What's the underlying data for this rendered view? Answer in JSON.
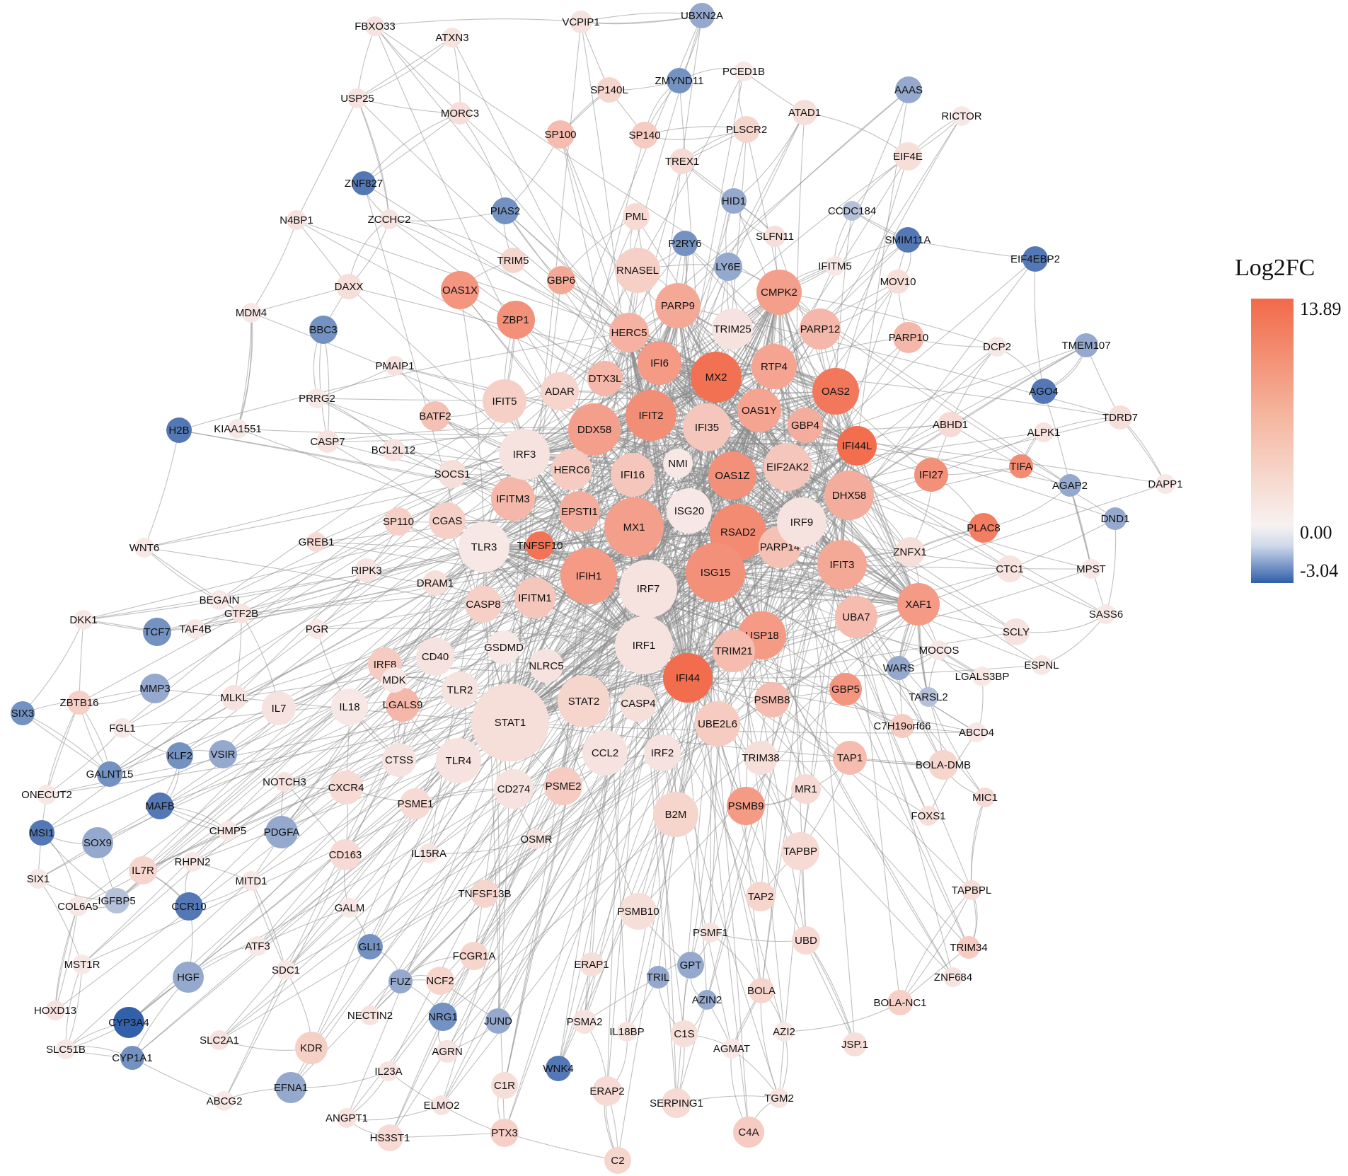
{
  "legend": {
    "title": "Log2FC",
    "max_label": "13.89",
    "mid_label": "0.00",
    "min_label": "-3.04",
    "colors": {
      "high": "#f26a4a",
      "mid": "#f7f2f1",
      "low": "#2f5ea8"
    }
  },
  "nodes": [
    {
      "id": "MX2",
      "v": 13.2
    },
    {
      "id": "IFI44",
      "v": 13.6
    },
    {
      "id": "TNFSF10",
      "v": 13.0
    },
    {
      "id": "IFI44L",
      "v": 13.5
    },
    {
      "id": "OAS2",
      "v": 12.5
    },
    {
      "id": "RSAD2",
      "v": 10.5
    },
    {
      "id": "IFIT2",
      "v": 10.2
    },
    {
      "id": "OAS1Z",
      "v": 10.0
    },
    {
      "id": "ISG15",
      "v": 10.0
    },
    {
      "id": "IFIH1",
      "v": 9.0
    },
    {
      "id": "MX1",
      "v": 8.5
    },
    {
      "id": "DDX58",
      "v": 8.5
    },
    {
      "id": "ZBP1",
      "v": 10.0
    },
    {
      "id": "OAS1X",
      "v": 9.5
    },
    {
      "id": "USP18",
      "v": 9.0
    },
    {
      "id": "IFI27",
      "v": 10.0
    },
    {
      "id": "PLAC8",
      "v": 12.0
    },
    {
      "id": "TIFA",
      "v": 10.5
    },
    {
      "id": "XAF1",
      "v": 9.0
    },
    {
      "id": "GBP5",
      "v": 9.5
    },
    {
      "id": "PSMB9",
      "v": 9.0
    },
    {
      "id": "IFI6",
      "v": 9.0
    },
    {
      "id": "OAS1Y",
      "v": 8.0
    },
    {
      "id": "RTP4",
      "v": 8.0
    },
    {
      "id": "CMPK2",
      "v": 8.5
    },
    {
      "id": "PARP9",
      "v": 7.5
    },
    {
      "id": "GBP6",
      "v": 7.5
    },
    {
      "id": "DHX58",
      "v": 7.0
    },
    {
      "id": "IFIT3",
      "v": 7.5
    },
    {
      "id": "EPSTI1",
      "v": 7.0
    },
    {
      "id": "IFITM3",
      "v": 6.0
    },
    {
      "id": "HERC5",
      "v": 6.5
    },
    {
      "id": "GBP4",
      "v": 7.0
    },
    {
      "id": "DTX3L",
      "v": 6.0
    },
    {
      "id": "PARP12",
      "v": 6.0
    },
    {
      "id": "PARP10",
      "v": 6.0
    },
    {
      "id": "UBA7",
      "v": 5.5
    },
    {
      "id": "TRIM21",
      "v": 5.5
    },
    {
      "id": "PSMB8",
      "v": 5.5
    },
    {
      "id": "TAP1",
      "v": 5.5
    },
    {
      "id": "IFI35",
      "v": 4.5
    },
    {
      "id": "EIF2AK2",
      "v": 4.5
    },
    {
      "id": "SP100",
      "v": 5.5
    },
    {
      "id": "PARP14",
      "v": 5.0
    },
    {
      "id": "STAT2",
      "v": 3.0
    },
    {
      "id": "IFITM1",
      "v": 4.5
    },
    {
      "id": "LGALS9",
      "v": 6.0
    },
    {
      "id": "IFI16",
      "v": 4.5
    },
    {
      "id": "BATF2",
      "v": 5.0
    },
    {
      "id": "UBE2L6",
      "v": 4.0
    },
    {
      "id": "HERC6",
      "v": 4.0
    },
    {
      "id": "RNASEL",
      "v": 3.5
    },
    {
      "id": "ADAR",
      "v": 3.0
    },
    {
      "id": "IFIT5",
      "v": 3.5
    },
    {
      "id": "CASP8",
      "v": 3.5
    },
    {
      "id": "PSME2",
      "v": 4.0
    },
    {
      "id": "B2M",
      "v": 3.0
    },
    {
      "id": "IRF8",
      "v": 4.0
    },
    {
      "id": "CGAS",
      "v": 3.5
    },
    {
      "id": "STAT1",
      "v": 2.0
    },
    {
      "id": "IRF7",
      "v": 1.5
    },
    {
      "id": "IRF1",
      "v": 1.5
    },
    {
      "id": "IRF9",
      "v": 1.5
    },
    {
      "id": "IRF3",
      "v": 1.5
    },
    {
      "id": "TLR3",
      "v": 1.0
    },
    {
      "id": "ISG20",
      "v": 1.0
    },
    {
      "id": "NMI",
      "v": 1.0
    },
    {
      "id": "TRIM25",
      "v": 1.5
    },
    {
      "id": "CD40",
      "v": 1.5
    },
    {
      "id": "GSDMD",
      "v": 1.0
    },
    {
      "id": "NLRC5",
      "v": 1.5
    },
    {
      "id": "TLR2",
      "v": 1.5
    },
    {
      "id": "TLR4",
      "v": 1.5
    },
    {
      "id": "CCL2",
      "v": 1.5
    },
    {
      "id": "IRF2",
      "v": 1.5
    },
    {
      "id": "CASP4",
      "v": 2.0
    },
    {
      "id": "CD274",
      "v": 1.5
    },
    {
      "id": "CTSS",
      "v": 1.5
    },
    {
      "id": "IL18",
      "v": 1.0
    },
    {
      "id": "IL7",
      "v": 1.5
    },
    {
      "id": "MDK",
      "v": 1.0
    },
    {
      "id": "ZNFX1",
      "v": 2.0
    },
    {
      "id": "TAPBP",
      "v": 2.5
    },
    {
      "id": "TRIM38",
      "v": 2.0
    },
    {
      "id": "PSMB10",
      "v": 2.0
    },
    {
      "id": "TAP2",
      "v": 3.0
    },
    {
      "id": "UBD",
      "v": 2.5
    },
    {
      "id": "MR1",
      "v": 2.5
    },
    {
      "id": "BOLA-DMB",
      "v": 3.0
    },
    {
      "id": "BOLA-NC1",
      "v": 3.5
    },
    {
      "id": "TRIM34",
      "v": 4.0
    },
    {
      "id": "ZNF684",
      "v": 1.5
    },
    {
      "id": "BOLA",
      "v": 3.0
    },
    {
      "id": "JSP.1",
      "v": 2.0
    },
    {
      "id": "C7H19orf66",
      "v": 4.0
    },
    {
      "id": "MIC1",
      "v": 2.5
    },
    {
      "id": "FOXS1",
      "v": 2.0
    },
    {
      "id": "TAPBPL",
      "v": 2.0
    },
    {
      "id": "PSME1",
      "v": 2.5
    },
    {
      "id": "CXCR4",
      "v": 2.5
    },
    {
      "id": "CD163",
      "v": 2.5
    },
    {
      "id": "IL15RA",
      "v": 1.5
    },
    {
      "id": "OSMR",
      "v": 1.5
    },
    {
      "id": "TNFSF13B",
      "v": 3.0
    },
    {
      "id": "PSMF1",
      "v": 1.5
    },
    {
      "id": "ERAP1",
      "v": 2.0
    },
    {
      "id": "FCGR1A",
      "v": 3.0
    },
    {
      "id": "PSMA2",
      "v": 1.5
    },
    {
      "id": "IL18BP",
      "v": 1.5
    },
    {
      "id": "C1S",
      "v": 2.0
    },
    {
      "id": "AGMAT",
      "v": 1.0
    },
    {
      "id": "AZI2",
      "v": 1.0
    },
    {
      "id": "C1R",
      "v": 2.0
    },
    {
      "id": "ERAP2",
      "v": 2.5
    },
    {
      "id": "SERPING1",
      "v": 2.5
    },
    {
      "id": "C4A",
      "v": 4.0
    },
    {
      "id": "TGM2",
      "v": 1.5
    },
    {
      "id": "PTX3",
      "v": 3.5
    },
    {
      "id": "C2",
      "v": 3.0
    },
    {
      "id": "AGRN",
      "v": 1.5
    },
    {
      "id": "ELMO2",
      "v": 1.5
    },
    {
      "id": "NCF2",
      "v": 3.0
    },
    {
      "id": "NECTIN2",
      "v": 1.5
    },
    {
      "id": "IL23A",
      "v": 1.5
    },
    {
      "id": "ANGPT1",
      "v": 1.5
    },
    {
      "id": "HS3ST1",
      "v": 2.5
    },
    {
      "id": "KDR",
      "v": 3.5
    },
    {
      "id": "ABCG2",
      "v": 1.0
    },
    {
      "id": "SLC2A1",
      "v": 1.5
    },
    {
      "id": "GALM",
      "v": 1.0
    },
    {
      "id": "MITD1",
      "v": 1.0
    },
    {
      "id": "ATF3",
      "v": 1.0
    },
    {
      "id": "SDC1",
      "v": 1.0
    },
    {
      "id": "NOTCH3",
      "v": 1.5
    },
    {
      "id": "CHMP5",
      "v": 1.0
    },
    {
      "id": "RHPN2",
      "v": 1.0
    },
    {
      "id": "IL7R",
      "v": 3.0
    },
    {
      "id": "HGF",
      "v": -1.5
    },
    {
      "id": "IGFBP5",
      "v": -1.0
    },
    {
      "id": "CCR10",
      "v": -2.5
    },
    {
      "id": "PDGFA",
      "v": -1.5
    },
    {
      "id": "GLI1",
      "v": -2.0
    },
    {
      "id": "FUZ",
      "v": -1.5
    },
    {
      "id": "NRG1",
      "v": -2.0
    },
    {
      "id": "JUND",
      "v": -1.5
    },
    {
      "id": "TRIL",
      "v": -1.5
    },
    {
      "id": "GPT",
      "v": -1.5
    },
    {
      "id": "AZIN2",
      "v": -1.5
    },
    {
      "id": "WNK4",
      "v": -2.5
    },
    {
      "id": "EFNA1",
      "v": -1.5
    },
    {
      "id": "CYP3A4",
      "v": -3.0
    },
    {
      "id": "CYP1A1",
      "v": -2.0
    },
    {
      "id": "SLC51B",
      "v": 1.0
    },
    {
      "id": "HOXD13",
      "v": 1.5
    },
    {
      "id": "MST1R",
      "v": 1.0
    },
    {
      "id": "COL6A5",
      "v": 1.0
    },
    {
      "id": "SIX1",
      "v": 1.0
    },
    {
      "id": "MSI1",
      "v": -2.5
    },
    {
      "id": "SOX9",
      "v": -1.5
    },
    {
      "id": "ONECUT2",
      "v": 1.0
    },
    {
      "id": "MAFB",
      "v": -2.5
    },
    {
      "id": "GALNT15",
      "v": -2.0
    },
    {
      "id": "SIX3",
      "v": -2.0
    },
    {
      "id": "ZBTB16",
      "v": 3.5
    },
    {
      "id": "FGL1",
      "v": 1.0
    },
    {
      "id": "KLF2",
      "v": -2.0
    },
    {
      "id": "VSIR",
      "v": -1.5
    },
    {
      "id": "MMP3",
      "v": -1.5
    },
    {
      "id": "TCF7",
      "v": -2.0
    },
    {
      "id": "DKK1",
      "v": 1.0
    },
    {
      "id": "WNT6",
      "v": 1.0
    },
    {
      "id": "TAF4B",
      "v": 1.0
    },
    {
      "id": "GTF2B",
      "v": 1.5
    },
    {
      "id": "BEGAIN",
      "v": 1.0
    },
    {
      "id": "MLKL",
      "v": 1.5
    },
    {
      "id": "PGR",
      "v": 1.0
    },
    {
      "id": "RIPK3",
      "v": 1.5
    },
    {
      "id": "DRAM1",
      "v": 2.0
    },
    {
      "id": "GREB1",
      "v": 2.5
    },
    {
      "id": "SP110",
      "v": 3.5
    },
    {
      "id": "SOCS1",
      "v": 2.0
    },
    {
      "id": "CASP7",
      "v": 1.5
    },
    {
      "id": "BCL2L12",
      "v": 1.5
    },
    {
      "id": "KIAA1551",
      "v": 1.0
    },
    {
      "id": "H2B",
      "v": -2.5
    },
    {
      "id": "PRRG2",
      "v": 1.0
    },
    {
      "id": "PMAIP1",
      "v": 1.5
    },
    {
      "id": "BBC3",
      "v": -2.0
    },
    {
      "id": "MDM4",
      "v": 1.0
    },
    {
      "id": "DAXX",
      "v": 2.0
    },
    {
      "id": "N4BP1",
      "v": 1.5
    },
    {
      "id": "ZCCHC2",
      "v": 1.5
    },
    {
      "id": "ZNF827",
      "v": -2.5
    },
    {
      "id": "PIAS2",
      "v": -2.0
    },
    {
      "id": "TRIM5",
      "v": 3.0
    },
    {
      "id": "USP25",
      "v": 1.5
    },
    {
      "id": "MORC3",
      "v": 2.0
    },
    {
      "id": "FBXO33",
      "v": 1.5
    },
    {
      "id": "ATXN3",
      "v": 1.5
    },
    {
      "id": "VCPIP1",
      "v": 1.5
    },
    {
      "id": "UBXN2A",
      "v": -1.5
    },
    {
      "id": "SP140L",
      "v": 3.0
    },
    {
      "id": "ZMYND11",
      "v": -2.0
    },
    {
      "id": "SP140",
      "v": 4.0
    },
    {
      "id": "PCED1B",
      "v": 1.0
    },
    {
      "id": "PLSCR2",
      "v": 3.0
    },
    {
      "id": "ATAD1",
      "v": 2.0
    },
    {
      "id": "TREX1",
      "v": 2.5
    },
    {
      "id": "PML",
      "v": 2.5
    },
    {
      "id": "HID1",
      "v": -1.5
    },
    {
      "id": "P2RY6",
      "v": -2.0
    },
    {
      "id": "LY6E",
      "v": -1.5
    },
    {
      "id": "SLFN11",
      "v": 2.0
    },
    {
      "id": "CCDC184",
      "v": -1.0
    },
    {
      "id": "IFITM5",
      "v": 1.0
    },
    {
      "id": "MOV10",
      "v": 2.0
    },
    {
      "id": "SMIM11A",
      "v": -2.5
    },
    {
      "id": "AAAS",
      "v": -1.5
    },
    {
      "id": "RICTOR",
      "v": 1.0
    },
    {
      "id": "EIF4E",
      "v": 2.0
    },
    {
      "id": "EIF4EBP2",
      "v": -2.5
    },
    {
      "id": "TMEM107",
      "v": -1.5
    },
    {
      "id": "DCP2",
      "v": 1.0
    },
    {
      "id": "AGO4",
      "v": -2.5
    },
    {
      "id": "TDRD7",
      "v": 2.0
    },
    {
      "id": "ALPK1",
      "v": 1.5
    },
    {
      "id": "ABHD1",
      "v": 2.5
    },
    {
      "id": "AGAP2",
      "v": -1.5
    },
    {
      "id": "DND1",
      "v": -1.5
    },
    {
      "id": "DAPP1",
      "v": 1.0
    },
    {
      "id": "CTC1",
      "v": 1.5
    },
    {
      "id": "MPST",
      "v": 1.0
    },
    {
      "id": "SASS6",
      "v": 1.0
    },
    {
      "id": "SCLY",
      "v": 1.5
    },
    {
      "id": "MOCOS",
      "v": 1.0
    },
    {
      "id": "LGALS3BP",
      "v": 1.0
    },
    {
      "id": "ESPNL",
      "v": 1.0
    },
    {
      "id": "WARS",
      "v": -1.5
    },
    {
      "id": "TARSL2",
      "v": -1.0
    },
    {
      "id": "ABCD4",
      "v": 1.0
    }
  ]
}
